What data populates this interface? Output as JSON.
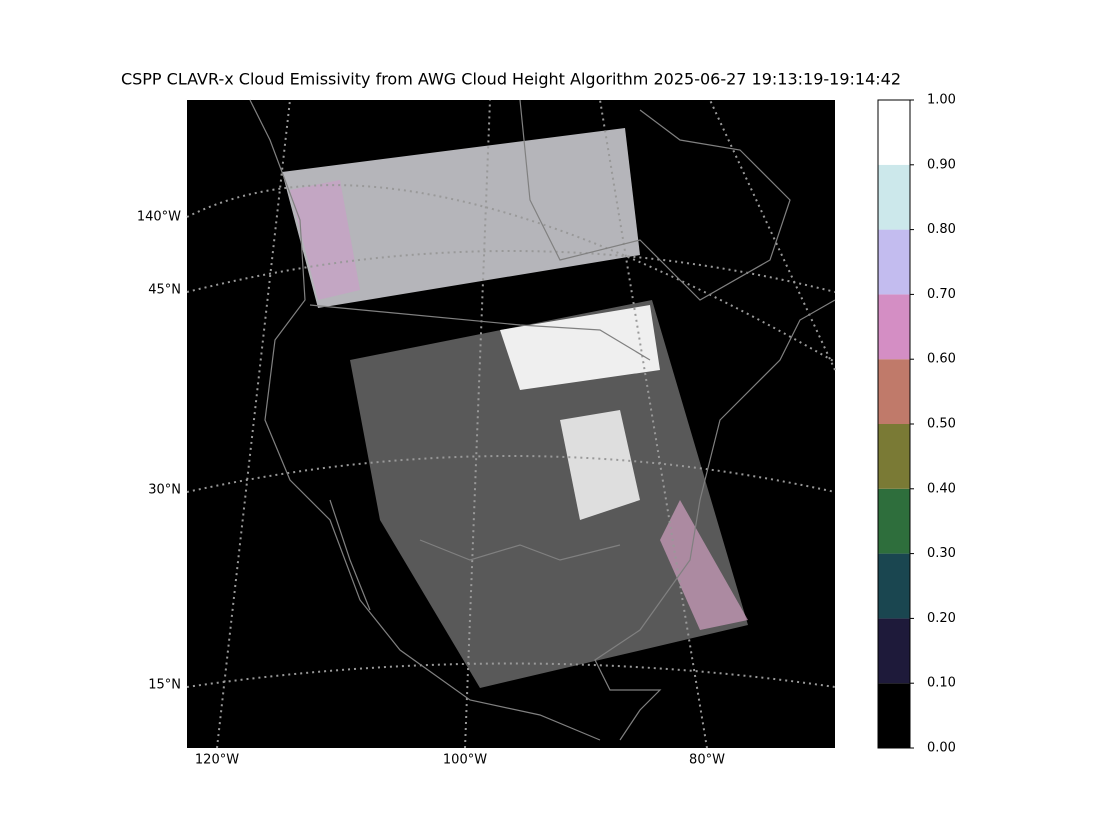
{
  "title": "CSPP CLAVR-x Cloud Emissivity from AWG Cloud Height Algorithm 2025-06-27 19:13:19-19:14:42",
  "map": {
    "lat_labels": [
      "45°N",
      "30°N",
      "15°N"
    ],
    "lon_labels_left": [
      "140°W"
    ],
    "lon_labels_bottom": [
      "120°W",
      "100°W",
      "80°W"
    ]
  },
  "colorbar": {
    "lim": [
      0,
      1
    ],
    "ticks": [
      {
        "value": 0,
        "label": "0.00"
      },
      {
        "value": 0.1,
        "label": "0.10"
      },
      {
        "value": 0.2,
        "label": "0.20"
      },
      {
        "value": 0.3,
        "label": "0.30"
      },
      {
        "value": 0.4,
        "label": "0.40"
      },
      {
        "value": 0.5,
        "label": "0.50"
      },
      {
        "value": 0.6,
        "label": "0.60"
      },
      {
        "value": 0.7,
        "label": "0.70"
      },
      {
        "value": 0.8,
        "label": "0.80"
      },
      {
        "value": 0.9,
        "label": "0.90"
      },
      {
        "value": 1,
        "label": "1.00"
      }
    ],
    "colors": [
      "#000000",
      "#1e1a3a",
      "#1a4650",
      "#2e6e3c",
      "#7a7a35",
      "#c07a6a",
      "#d48ec4",
      "#c3bcef",
      "#cce8eb",
      "#ffffff"
    ]
  }
}
